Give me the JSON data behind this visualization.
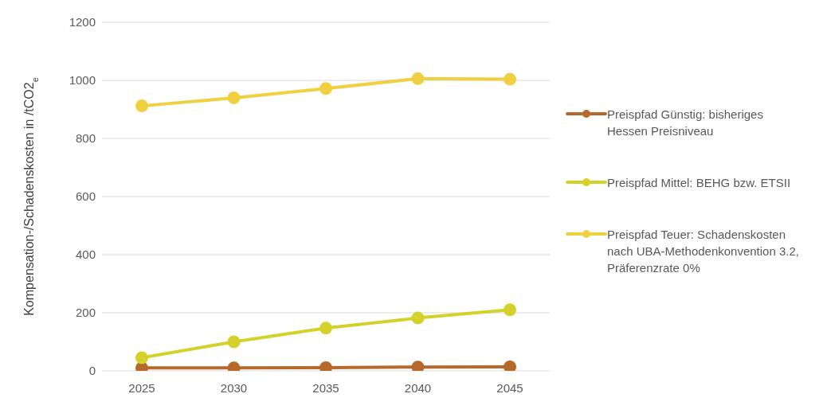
{
  "chart_data": {
    "type": "line",
    "ylabel": "Kompensation-/Schadenskosten in /tCO2$_{e}$",
    "categories": [
      "2025",
      "2030",
      "2035",
      "2040",
      "2045"
    ],
    "series": [
      {
        "name": "Preispfad Günstig: bisheriges Hessen Preisniveau",
        "color": "#b5692b",
        "values": [
          10,
          10,
          11,
          13,
          14
        ]
      },
      {
        "name": "Preispfad Mittel: BEHG bzw. ETSII",
        "color": "#d4d22a",
        "values": [
          45,
          100,
          147,
          182,
          210
        ]
      },
      {
        "name": "Preispfad Teuer: Schadenskosten nach UBA-Methodenkonvention 3.2, Präferenzrate 0%",
        "color": "#f0d040",
        "values": [
          912,
          940,
          972,
          1006,
          1004
        ]
      }
    ],
    "ylim": [
      0,
      1200
    ],
    "yticks": [
      0,
      200,
      400,
      600,
      800,
      1000,
      1200
    ],
    "grid": "y",
    "legend": "right",
    "marker": "circle",
    "line_style": "solid"
  }
}
